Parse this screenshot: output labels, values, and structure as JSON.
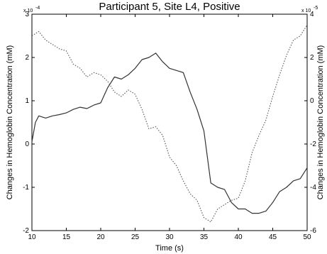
{
  "chart_data": {
    "type": "line",
    "title": "Participant 5, Site L4, Positive",
    "xlabel": "Time (s)",
    "ylabel_left": "Changes in Hemoglobin Concentration (mM)",
    "ylabel_right": "Changes in Hemoglobin Concentration (mM)",
    "xlim": [
      10,
      50
    ],
    "ylim_left": [
      -2,
      3
    ],
    "ylim_right": [
      -6,
      4
    ],
    "x_ticks": [
      "10",
      "15",
      "20",
      "25",
      "30",
      "35",
      "40",
      "45",
      "50"
    ],
    "y_ticks_left": [
      "-2",
      "-1",
      "0",
      "1",
      "2",
      "3"
    ],
    "y_ticks_right": [
      "-6",
      "-4",
      "-2",
      "0",
      "2",
      "4"
    ],
    "left_exponent": "x 10",
    "left_exponent_power": "-4",
    "right_exponent": "x 10",
    "right_exponent_power": "-5",
    "grid": false,
    "series": [
      {
        "axis": "left",
        "style": "solid",
        "color": "#333333",
        "x": [
          10,
          10.5,
          11,
          12,
          13,
          14,
          15,
          16,
          17,
          18,
          19,
          20,
          21,
          22,
          23,
          24,
          25,
          26,
          27,
          28,
          29,
          30,
          31,
          32,
          33,
          34,
          35,
          36,
          37,
          38,
          39,
          40,
          41,
          42,
          43,
          44,
          45,
          46,
          47,
          48,
          49,
          50
        ],
        "y": [
          0.05,
          0.5,
          0.65,
          0.6,
          0.65,
          0.68,
          0.72,
          0.8,
          0.85,
          0.82,
          0.9,
          0.95,
          1.3,
          1.55,
          1.5,
          1.6,
          1.75,
          1.95,
          2.0,
          2.1,
          1.9,
          1.75,
          1.7,
          1.65,
          1.2,
          0.8,
          0.3,
          -0.9,
          -1.0,
          -1.05,
          -1.35,
          -1.5,
          -1.5,
          -1.6,
          -1.6,
          -1.55,
          -1.35,
          -1.1,
          -1.0,
          -0.85,
          -0.8,
          -0.55
        ]
      },
      {
        "axis": "right",
        "style": "dotted",
        "color": "#555555",
        "x": [
          10,
          11,
          12,
          13,
          14,
          15,
          16,
          17,
          18,
          19,
          20,
          21,
          22,
          23,
          24,
          25,
          26,
          27,
          28,
          29,
          30,
          31,
          32,
          33,
          34,
          35,
          36,
          37,
          38,
          39,
          40,
          41,
          42,
          43,
          44,
          45,
          46,
          47,
          48,
          49,
          50
        ],
        "y": [
          3.0,
          3.2,
          2.8,
          2.6,
          2.4,
          2.3,
          1.7,
          1.5,
          1.1,
          1.3,
          1.2,
          0.9,
          0.4,
          0.2,
          0.5,
          0.3,
          -0.4,
          -1.3,
          -1.2,
          -1.6,
          -2.6,
          -3.0,
          -3.7,
          -4.3,
          -4.6,
          -5.4,
          -5.6,
          -5.0,
          -4.8,
          -4.6,
          -4.5,
          -3.7,
          -2.4,
          -1.6,
          -0.9,
          0.2,
          1.2,
          2.1,
          2.8,
          3.0,
          3.5
        ]
      }
    ]
  }
}
